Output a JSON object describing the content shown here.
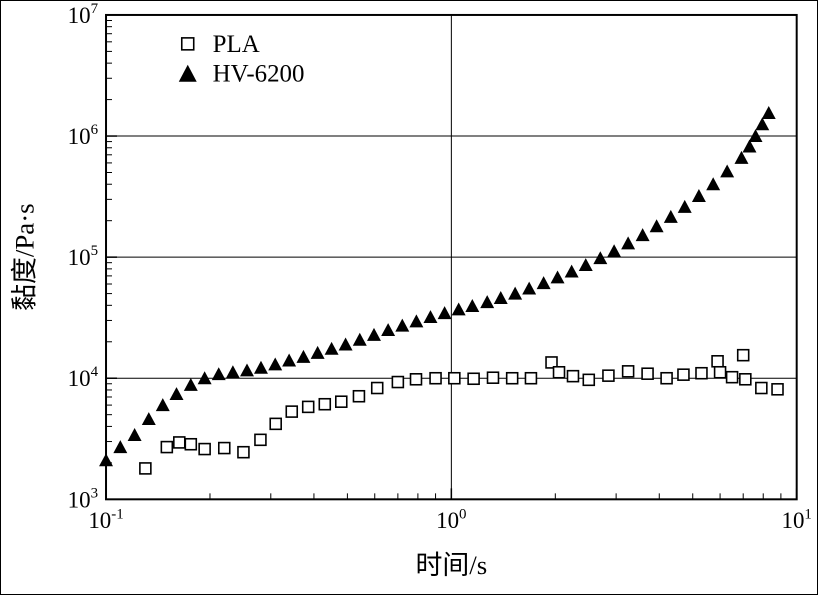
{
  "figure": {
    "background": "#ffffff",
    "frame_color": "#000000"
  },
  "chart_data": {
    "type": "scatter",
    "title": "",
    "xlabel": "时间/s",
    "ylabel": "黏度/Pa·s",
    "x_scale": "log",
    "y_scale": "log",
    "xlim": [
      0.1,
      10
    ],
    "ylim": [
      1000,
      10000000
    ],
    "tick_base": "10",
    "x_tick_exponents": [
      -1,
      0,
      1
    ],
    "y_tick_exponents": [
      3,
      4,
      5,
      6,
      7
    ],
    "grid": {
      "x_lines": [
        1
      ],
      "y_lines": [
        10000,
        100000,
        1000000
      ],
      "color": "#000000"
    },
    "legend": {
      "position": "top-left",
      "entries": [
        {
          "label": "PLA",
          "marker": "open-square"
        },
        {
          "label": "HV-6200",
          "marker": "filled-triangle"
        }
      ]
    },
    "series": [
      {
        "name": "PLA",
        "marker": "open-square",
        "color": "#000000",
        "points": [
          [
            0.13,
            1800
          ],
          [
            0.15,
            2700
          ],
          [
            0.163,
            2950
          ],
          [
            0.176,
            2850
          ],
          [
            0.193,
            2600
          ],
          [
            0.22,
            2650
          ],
          [
            0.25,
            2450
          ],
          [
            0.28,
            3100
          ],
          [
            0.31,
            4200
          ],
          [
            0.345,
            5300
          ],
          [
            0.385,
            5800
          ],
          [
            0.43,
            6100
          ],
          [
            0.48,
            6400
          ],
          [
            0.54,
            7100
          ],
          [
            0.61,
            8300
          ],
          [
            0.7,
            9300
          ],
          [
            0.79,
            9800
          ],
          [
            0.9,
            10000
          ],
          [
            1.02,
            10000
          ],
          [
            1.16,
            9900
          ],
          [
            1.32,
            10100
          ],
          [
            1.5,
            10000
          ],
          [
            1.7,
            10000
          ],
          [
            1.95,
            13500
          ],
          [
            2.05,
            11200
          ],
          [
            2.25,
            10400
          ],
          [
            2.5,
            9700
          ],
          [
            2.85,
            10500
          ],
          [
            3.25,
            11400
          ],
          [
            3.7,
            10900
          ],
          [
            4.2,
            10000
          ],
          [
            4.7,
            10700
          ],
          [
            5.3,
            11000
          ],
          [
            5.9,
            13800
          ],
          [
            6.0,
            11200
          ],
          [
            6.5,
            10200
          ],
          [
            7.0,
            15500
          ],
          [
            7.1,
            9800
          ],
          [
            7.9,
            8300
          ],
          [
            8.8,
            8100
          ]
        ]
      },
      {
        "name": "HV-6200",
        "marker": "filled-triangle",
        "color": "#000000",
        "points": [
          [
            0.1,
            2100
          ],
          [
            0.11,
            2700
          ],
          [
            0.121,
            3400
          ],
          [
            0.133,
            4600
          ],
          [
            0.146,
            6000
          ],
          [
            0.16,
            7400
          ],
          [
            0.176,
            8800
          ],
          [
            0.193,
            10000
          ],
          [
            0.212,
            10800
          ],
          [
            0.233,
            11200
          ],
          [
            0.256,
            11600
          ],
          [
            0.281,
            12200
          ],
          [
            0.309,
            13000
          ],
          [
            0.339,
            14000
          ],
          [
            0.373,
            15000
          ],
          [
            0.41,
            16200
          ],
          [
            0.45,
            17500
          ],
          [
            0.494,
            19000
          ],
          [
            0.543,
            20800
          ],
          [
            0.597,
            22800
          ],
          [
            0.656,
            25000
          ],
          [
            0.721,
            27200
          ],
          [
            0.792,
            29500
          ],
          [
            0.87,
            32000
          ],
          [
            0.956,
            34500
          ],
          [
            1.05,
            37000
          ],
          [
            1.15,
            39500
          ],
          [
            1.27,
            42500
          ],
          [
            1.39,
            46000
          ],
          [
            1.53,
            50000
          ],
          [
            1.68,
            55000
          ],
          [
            1.85,
            61000
          ],
          [
            2.03,
            68000
          ],
          [
            2.23,
            76000
          ],
          [
            2.45,
            86000
          ],
          [
            2.7,
            98000
          ],
          [
            2.96,
            112000
          ],
          [
            3.25,
            130000
          ],
          [
            3.58,
            152000
          ],
          [
            3.93,
            180000
          ],
          [
            4.32,
            215000
          ],
          [
            4.74,
            260000
          ],
          [
            5.21,
            320000
          ],
          [
            5.73,
            400000
          ],
          [
            6.29,
            510000
          ],
          [
            6.92,
            660000
          ],
          [
            7.3,
            820000
          ],
          [
            7.6,
            1000000
          ],
          [
            7.95,
            1250000
          ],
          [
            8.3,
            1550000
          ]
        ]
      }
    ]
  }
}
